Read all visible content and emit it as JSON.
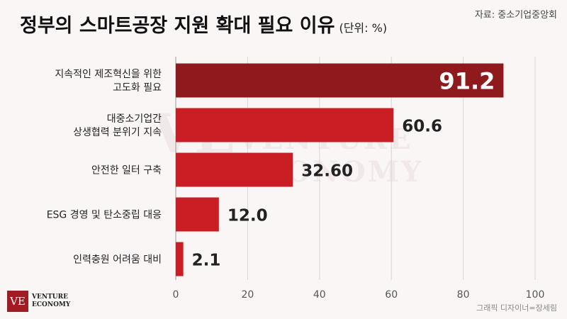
{
  "header": {
    "title": "정부의 스마트공장 지원 확대 필요 이유",
    "unit": "(단위: %)",
    "source": "자료: 중소기업중앙회"
  },
  "watermark": {
    "mark": "VE",
    "line1": "VENTURE",
    "line2": "ECONOMY"
  },
  "logo": {
    "mark": "VE",
    "line1": "VENTURE",
    "line2": "ECONOMY"
  },
  "credit": "그래픽 디자이너=장세림",
  "colors": {
    "highlight_bar": "#8e1a1e",
    "bar": "#c81e24",
    "highlight_label": "#ffffff",
    "label": "#222222"
  },
  "chart_data": {
    "type": "bar",
    "orientation": "horizontal",
    "categories": [
      [
        "지속적인 제조혁신을 위한",
        "고도화 필요"
      ],
      [
        "대중소기업간",
        "상생협력 분위기 지속"
      ],
      [
        "안전한 일터 구축"
      ],
      [
        "ESG 경영 및 탄소중립 대응"
      ],
      [
        "인력충원 어려움 대비"
      ]
    ],
    "values": [
      91.2,
      60.6,
      32.6,
      12.0,
      2.1
    ],
    "value_labels": [
      "91.2",
      "60.6",
      "32.60",
      "12.0",
      "2.1"
    ],
    "highlight_index": 0,
    "xlim": [
      0,
      100
    ],
    "xticks": [
      0,
      20,
      40,
      60,
      80,
      100
    ],
    "grid": "vertical",
    "legend": "none"
  }
}
